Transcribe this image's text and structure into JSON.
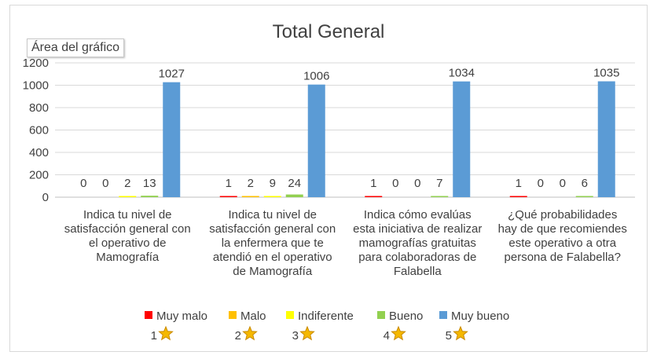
{
  "tooltip": "Área del gráfico",
  "chart_data": {
    "type": "bar",
    "title": "Total General",
    "categories": [
      [
        "Indica tu nivel de",
        "satisfacción general con",
        "el operativo de",
        "Mamografía"
      ],
      [
        "Indica tu nivel de",
        "satisfacción general con",
        "la enfermera que te",
        "atendió en el operativo",
        "de Mamografía"
      ],
      [
        "Indica cómo evalúas",
        "esta iniciativa de realizar",
        "mamografías gratuitas",
        "para colaboradoras de",
        "Falabella"
      ],
      [
        "¿Qué probabilidades",
        "hay de que recomiendes",
        "este operativo a otra",
        "persona de Falabella?"
      ]
    ],
    "series": [
      {
        "name": "Muy malo",
        "rating": "1",
        "color": "#ff0000",
        "values": [
          0,
          1,
          1,
          1
        ]
      },
      {
        "name": "Malo",
        "rating": "2",
        "color": "#ffc000",
        "values": [
          0,
          2,
          0,
          0
        ]
      },
      {
        "name": "Indiferente",
        "rating": "3",
        "color": "#ffff00",
        "values": [
          2,
          9,
          0,
          0
        ]
      },
      {
        "name": "Bueno",
        "rating": "4",
        "color": "#92d050",
        "values": [
          13,
          24,
          7,
          6
        ]
      },
      {
        "name": "Muy bueno",
        "rating": "5",
        "color": "#5b9bd5",
        "values": [
          1027,
          1006,
          1034,
          1035
        ]
      }
    ],
    "yticks": [
      0,
      200,
      400,
      600,
      800,
      1000,
      1200
    ],
    "ylim": [
      0,
      1200
    ],
    "legend_position": "bottom",
    "rating_icon": "star-icon",
    "grid": true
  }
}
